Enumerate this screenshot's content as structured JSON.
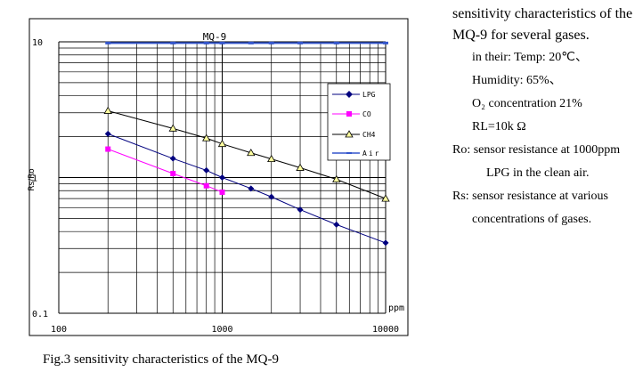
{
  "chart_data": {
    "type": "line",
    "title": "MQ-9",
    "xlabel": "ppm",
    "ylabel": "Rs/Ro",
    "xscale": "log",
    "yscale": "log",
    "xlim": [
      100,
      10000
    ],
    "ylim": [
      0.1,
      10
    ],
    "x_tick_labels": [
      "100",
      "1000",
      "10000"
    ],
    "y_tick_labels": [
      "0.1",
      "1",
      "10"
    ],
    "legend_position": "top-right",
    "series": [
      {
        "name": "LPG",
        "color": "#00007f",
        "marker": "diamond",
        "x": [
          200,
          500,
          800,
          1000,
          1500,
          2000,
          3000,
          5000,
          10000
        ],
        "y": [
          2.1,
          1.38,
          1.13,
          1.0,
          0.83,
          0.72,
          0.58,
          0.45,
          0.33
        ]
      },
      {
        "name": "CO",
        "color": "#ff00ff",
        "marker": "square",
        "x": [
          200,
          500,
          800,
          1000
        ],
        "y": [
          1.62,
          1.07,
          0.87,
          0.78
        ]
      },
      {
        "name": "CH4",
        "color": "#000000",
        "marker": "triangle",
        "x": [
          200,
          500,
          800,
          1000,
          1500,
          2000,
          3000,
          5000,
          10000
        ],
        "y": [
          3.1,
          2.3,
          1.95,
          1.77,
          1.52,
          1.37,
          1.18,
          0.97,
          0.7
        ]
      },
      {
        "name": "Air",
        "color": "#3355cc",
        "marker": "dash",
        "x": [
          200,
          500,
          800,
          1000,
          1500,
          2000,
          3000,
          5000,
          10000
        ],
        "y": [
          9.8,
          9.8,
          9.8,
          9.8,
          9.8,
          9.8,
          9.8,
          9.8,
          9.8
        ]
      }
    ]
  },
  "legend": {
    "lpg": "LPG",
    "co": "CO",
    "ch4": "CH4",
    "air": "Air"
  },
  "side_text": {
    "heading": "sensitivity characteristics of the MQ-9 for several gases.",
    "cond_intro": "in their: Temp: 20℃、",
    "humidity": "Humidity: 65%、",
    "o2": "O₂ concentration 21%",
    "rl": "RL=10k Ω",
    "ro_line1": "Ro: sensor resistance at 1000ppm",
    "ro_line2": "LPG in the clean air.",
    "rs_line1": "Rs: sensor resistance at various",
    "rs_line2": "concentrations of gases."
  },
  "caption": "Fig.3 sensitivity characteristics of the MQ-9"
}
